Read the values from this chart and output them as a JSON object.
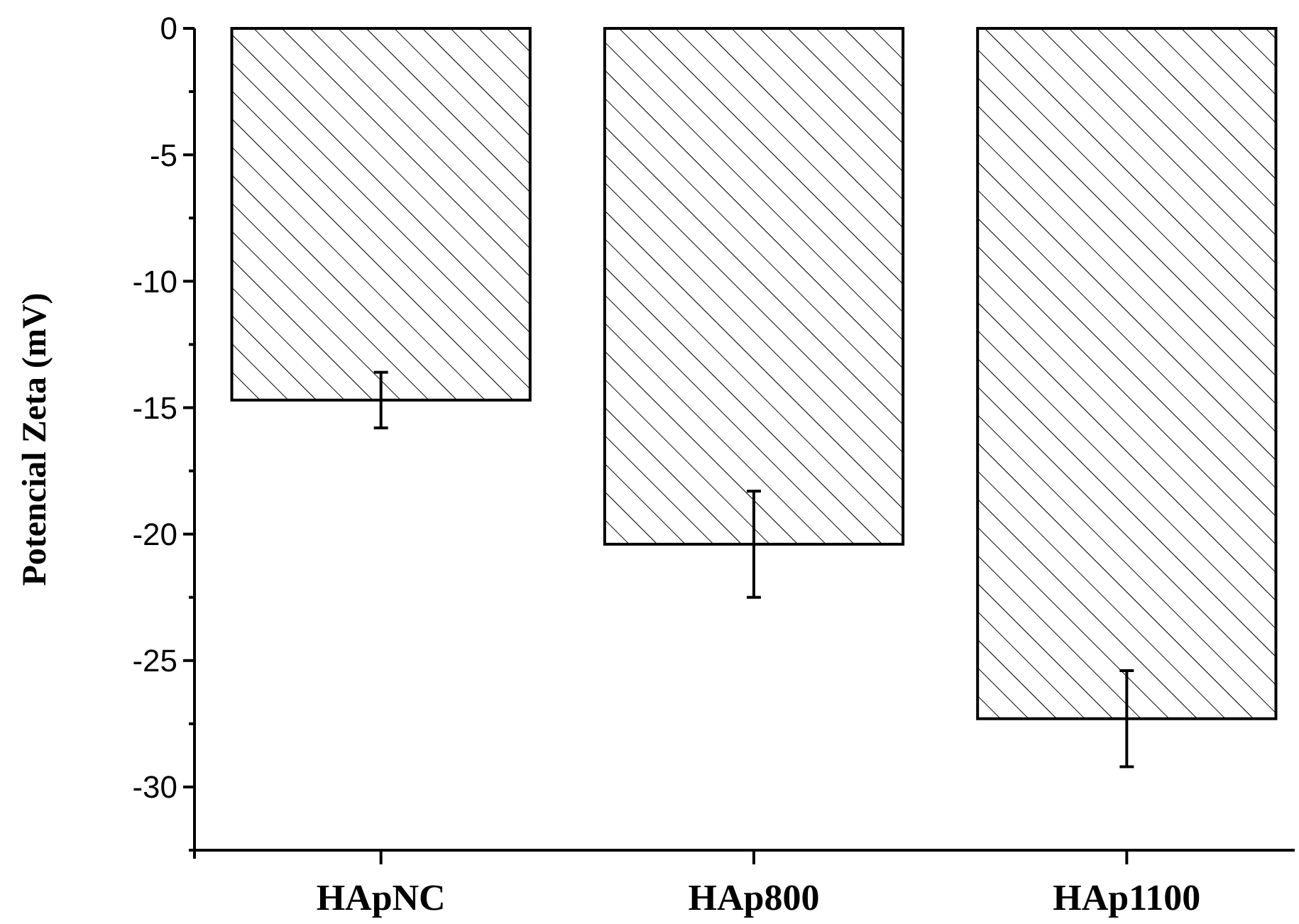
{
  "chart_data": {
    "type": "bar",
    "ylabel": "Potencial Zeta (mV)",
    "categories": [
      "HApNC",
      "HAp800",
      "HAp1100"
    ],
    "values": [
      -14.7,
      -20.4,
      -27.3
    ],
    "errors": [
      1.1,
      2.1,
      1.9
    ],
    "color": "#000000",
    "ylim": [
      -32.5,
      0
    ],
    "yticks": [
      {
        "value": -32.5,
        "label": null
      },
      -30,
      {
        "value": -27.5,
        "label": null
      },
      -25,
      {
        "value": -22.5,
        "label": null
      },
      -20,
      {
        "value": -17.5,
        "label": null
      },
      -15,
      {
        "value": -12.5,
        "label": null
      },
      -10,
      {
        "value": -7.5,
        "label": null
      },
      -5,
      {
        "value": -2.5,
        "label": null
      },
      0
    ],
    "grid": false
  }
}
